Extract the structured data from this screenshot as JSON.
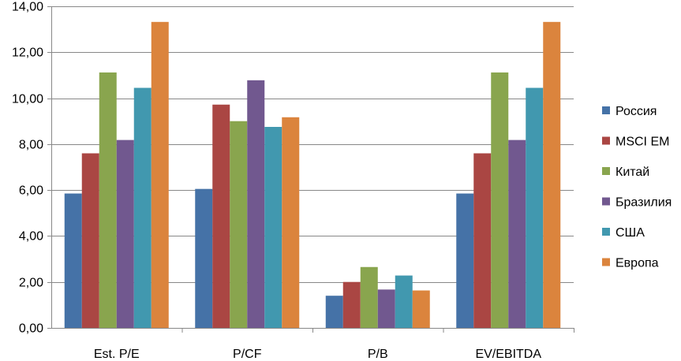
{
  "chart_data": {
    "type": "bar",
    "title": "",
    "xlabel": "",
    "ylabel": "",
    "categories": [
      "Est. P/E",
      "P/CF",
      "P/B",
      "EV/EBITDA"
    ],
    "ylim": [
      0,
      14
    ],
    "yticks": [
      "0,00",
      "2,00",
      "4,00",
      "6,00",
      "8,00",
      "10,00",
      "12,00",
      "14,00"
    ],
    "grid": true,
    "legend_position": "right",
    "series": [
      {
        "name": "Россия",
        "color": "#4572A7",
        "values": [
          5.85,
          6.05,
          1.4,
          5.85
        ]
      },
      {
        "name": "MSCI EM",
        "color": "#AA4643",
        "values": [
          7.6,
          9.72,
          2.0,
          7.6
        ]
      },
      {
        "name": "Китай",
        "color": "#89A54E",
        "values": [
          11.12,
          9.0,
          2.65,
          11.12
        ]
      },
      {
        "name": "Бразилия",
        "color": "#71588F",
        "values": [
          8.18,
          10.78,
          1.67,
          8.18
        ]
      },
      {
        "name": "США",
        "color": "#4198AF",
        "values": [
          10.45,
          8.75,
          2.28,
          10.45
        ]
      },
      {
        "name": "Европа",
        "color": "#DB843D",
        "values": [
          13.32,
          9.17,
          1.63,
          13.32
        ]
      }
    ]
  }
}
